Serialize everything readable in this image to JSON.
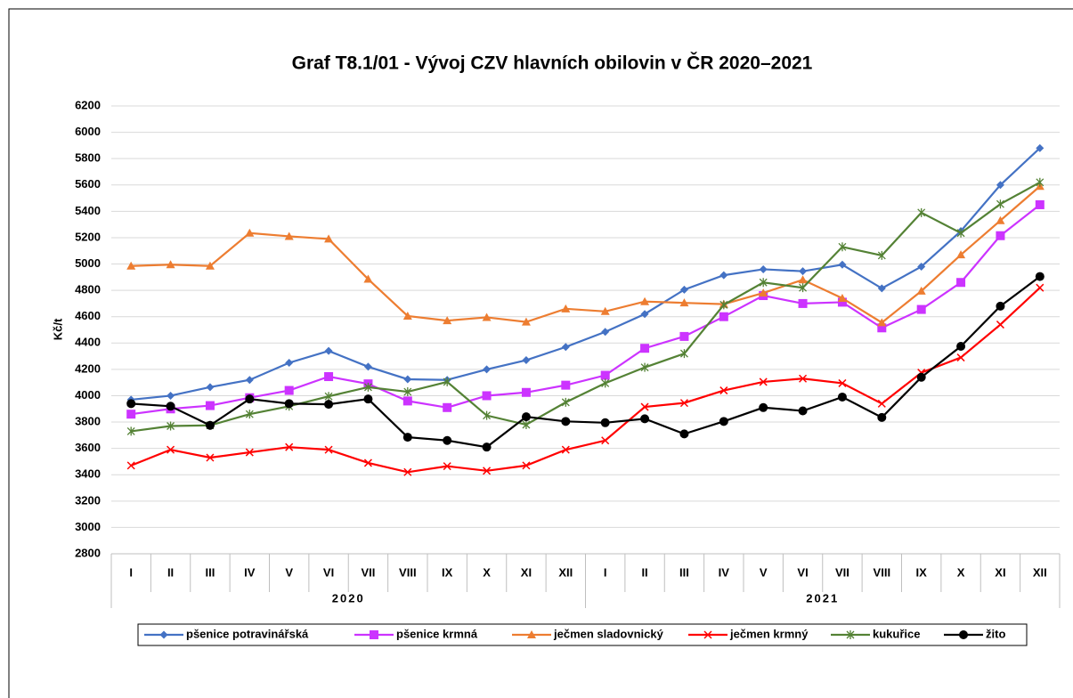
{
  "chart_data": {
    "type": "line",
    "title": "Graf T8.1/01 - Vývoj CZV hlavních obilovin v ČR 2020–2021",
    "y_label": "Kč/t",
    "categories": [
      "I",
      "II",
      "III",
      "IV",
      "V",
      "VI",
      "VII",
      "VIII",
      "IX",
      "X",
      "XI",
      "XII",
      "I",
      "II",
      "III",
      "IV",
      "V",
      "VI",
      "VII",
      "VIII",
      "IX",
      "X",
      "XI",
      "XII"
    ],
    "years": [
      "2020",
      "2021"
    ],
    "ylim": [
      2800,
      6200
    ],
    "yticks": [
      2800,
      3000,
      3200,
      3400,
      3600,
      3800,
      4000,
      4200,
      4400,
      4600,
      4800,
      5000,
      5200,
      5400,
      5600,
      5800,
      6000,
      6200
    ],
    "grid": true,
    "legend": "bottom",
    "series": [
      {
        "name": "pšenice potravinářská",
        "color": "#4472c4",
        "marker": "diamond",
        "values": [
          3970,
          4000,
          4065,
          4120,
          4250,
          4340,
          4220,
          4125,
          4120,
          4200,
          4270,
          4370,
          4485,
          4620,
          4805,
          4915,
          4960,
          4945,
          4995,
          4815,
          4980,
          5250,
          5600,
          5880
        ]
      },
      {
        "name": "pšenice krmná",
        "color": "#cc33ff",
        "marker": "square",
        "values": [
          3860,
          3900,
          3925,
          3985,
          4040,
          4145,
          4090,
          3960,
          3910,
          4000,
          4025,
          4080,
          4155,
          4360,
          4450,
          4600,
          4760,
          4700,
          4710,
          4515,
          4655,
          4860,
          5215,
          5450
        ]
      },
      {
        "name": "ječmen sladovnický",
        "color": "#ed7d31",
        "marker": "triangle",
        "values": [
          4985,
          4995,
          4985,
          5235,
          5210,
          5190,
          4885,
          4605,
          4570,
          4595,
          4560,
          4660,
          4640,
          4715,
          4705,
          4695,
          4780,
          4880,
          4740,
          4555,
          4795,
          5070,
          5330,
          5590
        ]
      },
      {
        "name": "ječmen krmný",
        "color": "#ff0000",
        "marker": "x",
        "values": [
          3470,
          3590,
          3530,
          3570,
          3610,
          3590,
          3490,
          3420,
          3465,
          3430,
          3470,
          3590,
          3660,
          3915,
          3945,
          4040,
          4105,
          4130,
          4095,
          3940,
          4175,
          4290,
          4540,
          4820
        ]
      },
      {
        "name": "kukuřice",
        "color": "#548235",
        "marker": "star",
        "values": [
          3730,
          3770,
          3775,
          3860,
          3920,
          3995,
          4065,
          4030,
          4105,
          3850,
          3780,
          3950,
          4095,
          4215,
          4320,
          4690,
          4860,
          4820,
          5130,
          5065,
          5390,
          5235,
          5455,
          5620
        ]
      },
      {
        "name": "žito",
        "color": "#000000",
        "marker": "circle",
        "values": [
          3940,
          3920,
          3775,
          3975,
          3940,
          3935,
          3975,
          3685,
          3660,
          3610,
          3840,
          3805,
          3795,
          3825,
          3710,
          3805,
          3910,
          3885,
          3990,
          3835,
          4140,
          4375,
          4680,
          4905
        ]
      }
    ]
  }
}
